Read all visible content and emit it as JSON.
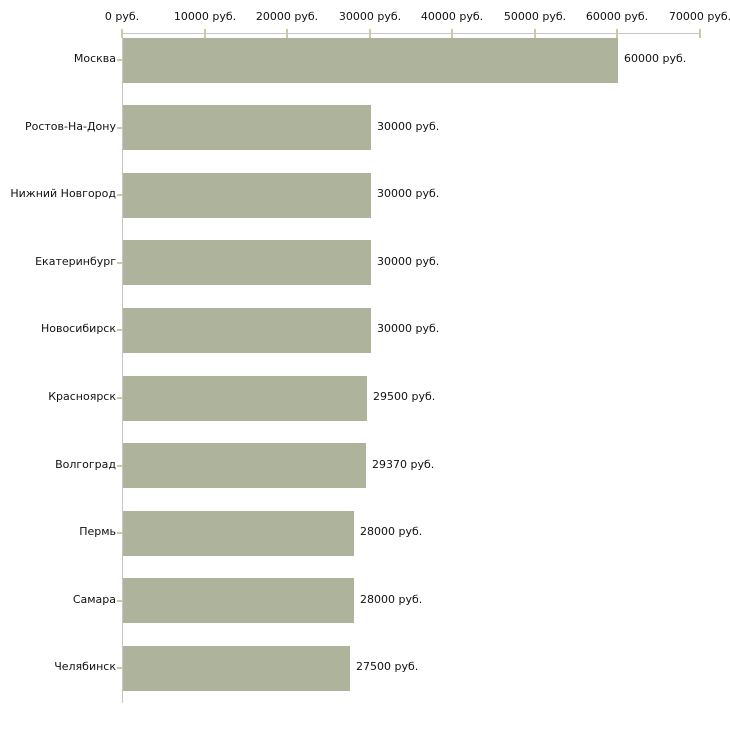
{
  "chart_data": {
    "type": "bar",
    "orientation": "horizontal",
    "title": "",
    "categories": [
      "Москва",
      "Ростов-На-Дону",
      "Нижний Новгород",
      "Екатеринбург",
      "Новосибирск",
      "Красноярск",
      "Волгоград",
      "Пермь",
      "Самара",
      "Челябинск"
    ],
    "values": [
      60000,
      30000,
      30000,
      30000,
      30000,
      29500,
      29370,
      28000,
      28000,
      27500
    ],
    "value_labels": [
      "60000 руб.",
      "30000 руб.",
      "30000 руб.",
      "30000 руб.",
      "30000 руб.",
      "29500 руб.",
      "29370 руб.",
      "28000 руб.",
      "28000 руб.",
      "27500 руб."
    ],
    "x_tick_values": [
      0,
      10000,
      20000,
      30000,
      40000,
      50000,
      60000,
      70000
    ],
    "x_tick_labels": [
      "0 руб.",
      "10000 руб.",
      "20000 руб.",
      "30000 руб.",
      "40000 руб.",
      "50000 руб.",
      "60000 руб.",
      "70000 руб."
    ],
    "xlim": [
      0,
      70000
    ],
    "unit": "руб.",
    "grid": false,
    "legend": false,
    "axis_position": "top",
    "colors": {
      "bar": "#aeb49c",
      "axis_line": "#c6c6c6",
      "tick_mark": "#cfc9a2",
      "text": "#111111",
      "background": "#ffffff"
    }
  }
}
